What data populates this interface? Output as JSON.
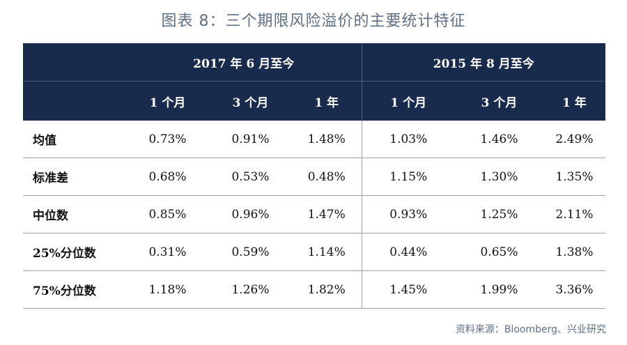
{
  "title": "图表 8：三个期限风险溢价的主要统计特征",
  "header": {
    "group1": "2017 年 6 月至今",
    "group2": "2015 年 8 月至今",
    "periods": [
      "1 个月",
      "3 个月",
      "1 年",
      "1 个月",
      "3 个月",
      "1 年"
    ]
  },
  "rows": [
    {
      "label": "均值",
      "values": [
        "0.73%",
        "0.91%",
        "1.48%",
        "1.03%",
        "1.46%",
        "2.49%"
      ]
    },
    {
      "label": "标准差",
      "values": [
        "0.68%",
        "0.53%",
        "0.48%",
        "1.15%",
        "1.30%",
        "1.35%"
      ]
    },
    {
      "label": "中位数",
      "values": [
        "0.85%",
        "0.96%",
        "1.47%",
        "0.93%",
        "1.25%",
        "2.11%"
      ]
    },
    {
      "label": "25%分位数",
      "values": [
        "0.31%",
        "0.59%",
        "1.14%",
        "0.44%",
        "0.65%",
        "1.38%"
      ]
    },
    {
      "label": "75%分位数",
      "values": [
        "1.18%",
        "1.26%",
        "1.82%",
        "1.45%",
        "1.99%",
        "3.36%"
      ]
    }
  ],
  "source": "资料来源：Bloomberg、兴业研究",
  "colors": {
    "header_bg": "#182b4c",
    "title": "#5d6f86"
  }
}
